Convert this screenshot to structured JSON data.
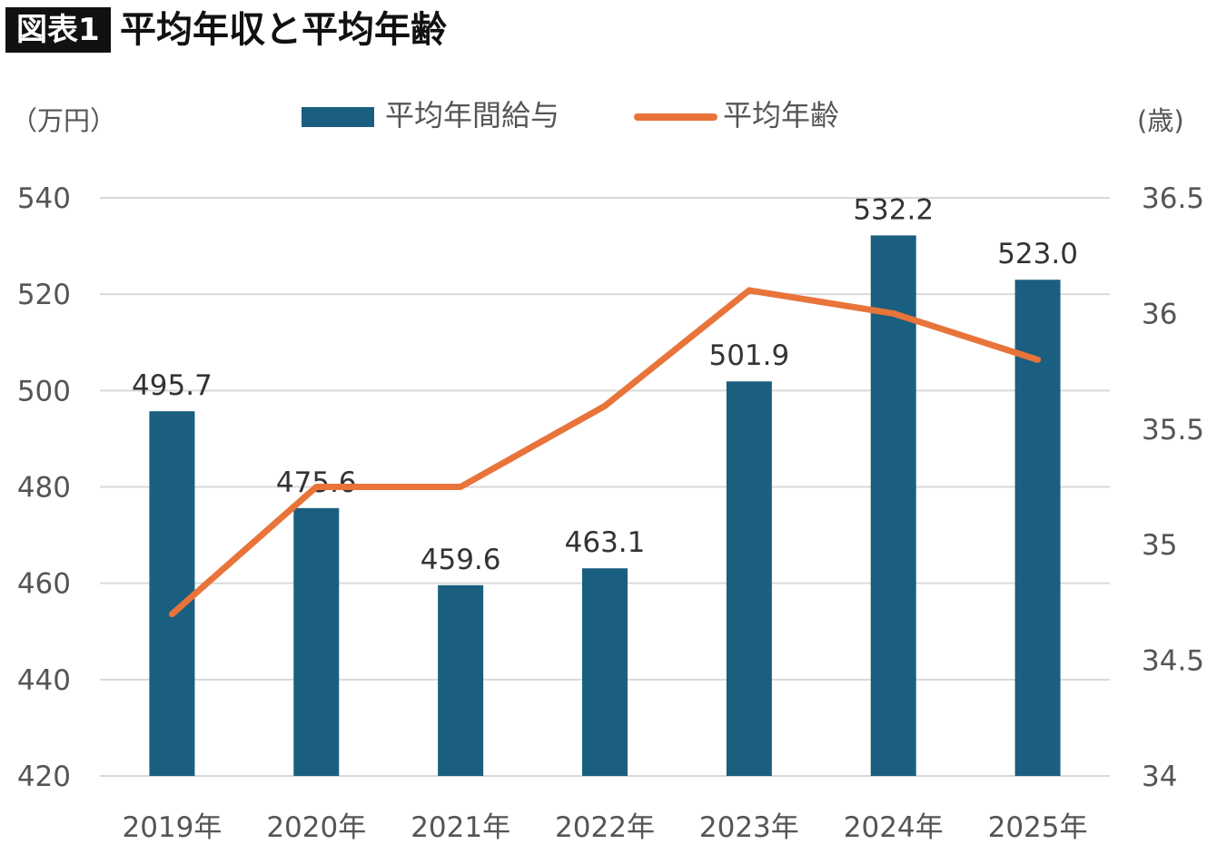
{
  "header": {
    "tag": "図表1",
    "title": "平均年収と平均年齢"
  },
  "chart_data": {
    "type": "bar",
    "categories": [
      "2019年",
      "2020年",
      "2021年",
      "2022年",
      "2023年",
      "2024年",
      "2025年"
    ],
    "series": [
      {
        "name": "平均年間給与",
        "type": "bar",
        "axis": "left",
        "color": "#1a5f80",
        "values": [
          495.7,
          475.6,
          459.6,
          463.1,
          501.9,
          532.2,
          523.0
        ],
        "labels": [
          "495.7",
          "475.6",
          "459.6",
          "463.1",
          "501.9",
          "532.2",
          "523.0"
        ]
      },
      {
        "name": "平均年齢",
        "type": "line",
        "axis": "right",
        "color": "#e8743a",
        "values": [
          34.7,
          35.25,
          35.25,
          35.6,
          36.1,
          36.0,
          35.8
        ]
      }
    ],
    "y_left": {
      "unit": "（万円）",
      "ylim": [
        420,
        540
      ],
      "ticks": [
        "420",
        "440",
        "460",
        "480",
        "500",
        "520",
        "540"
      ]
    },
    "y_right": {
      "unit": "(歳)",
      "ylim": [
        34,
        36.5
      ],
      "ticks": [
        "34",
        "34.5",
        "35",
        "35.5",
        "36",
        "36.5"
      ]
    },
    "grid": true,
    "legend_position": "top"
  },
  "colors": {
    "bar": "#1a5f80",
    "line": "#e8743a",
    "grid": "#d9d9d9"
  }
}
